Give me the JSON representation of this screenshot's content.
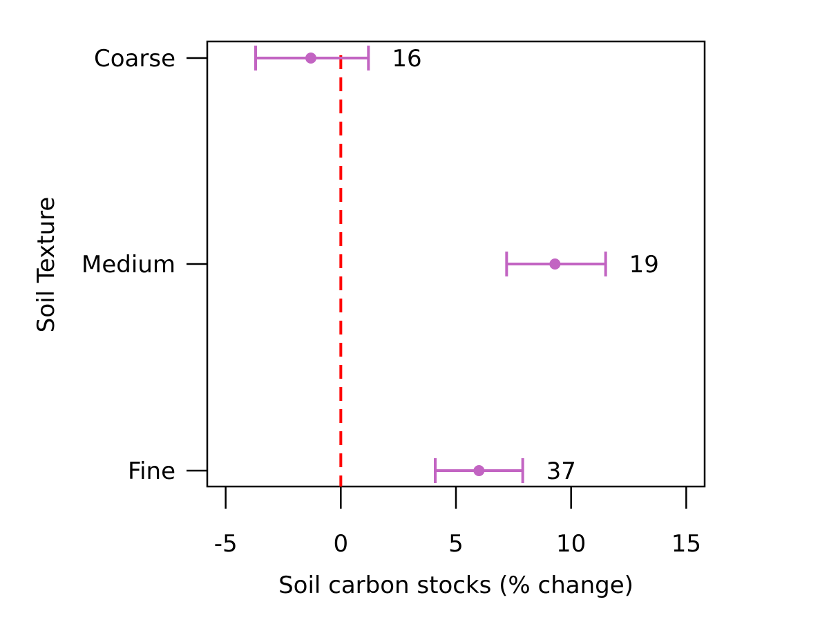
{
  "chart_data": {
    "type": "scatter",
    "xlabel": "Soil carbon stocks (% change)",
    "ylabel": "Soil Texture",
    "xlim": [
      -5.8,
      15.8
    ],
    "xticks": [
      -5,
      0,
      5,
      10,
      15
    ],
    "xtick_labels": [
      "-5",
      "0",
      "5",
      "10",
      "15"
    ],
    "categories": [
      "Fine",
      "Medium",
      "Coarse"
    ],
    "points": [
      {
        "category": "Coarse",
        "mean": -1.3,
        "lower": -3.7,
        "upper": 1.2,
        "n_label": "16"
      },
      {
        "category": "Medium",
        "mean": 9.3,
        "lower": 7.2,
        "upper": 11.5,
        "n_label": "19"
      },
      {
        "category": "Fine",
        "mean": 6.0,
        "lower": 4.1,
        "upper": 7.9,
        "n_label": "37"
      }
    ],
    "reference_line": {
      "x": 0,
      "style": "dashed"
    },
    "colors": {
      "point": "#c264c2",
      "reference": "#ff0000",
      "axis": "#000000"
    }
  }
}
